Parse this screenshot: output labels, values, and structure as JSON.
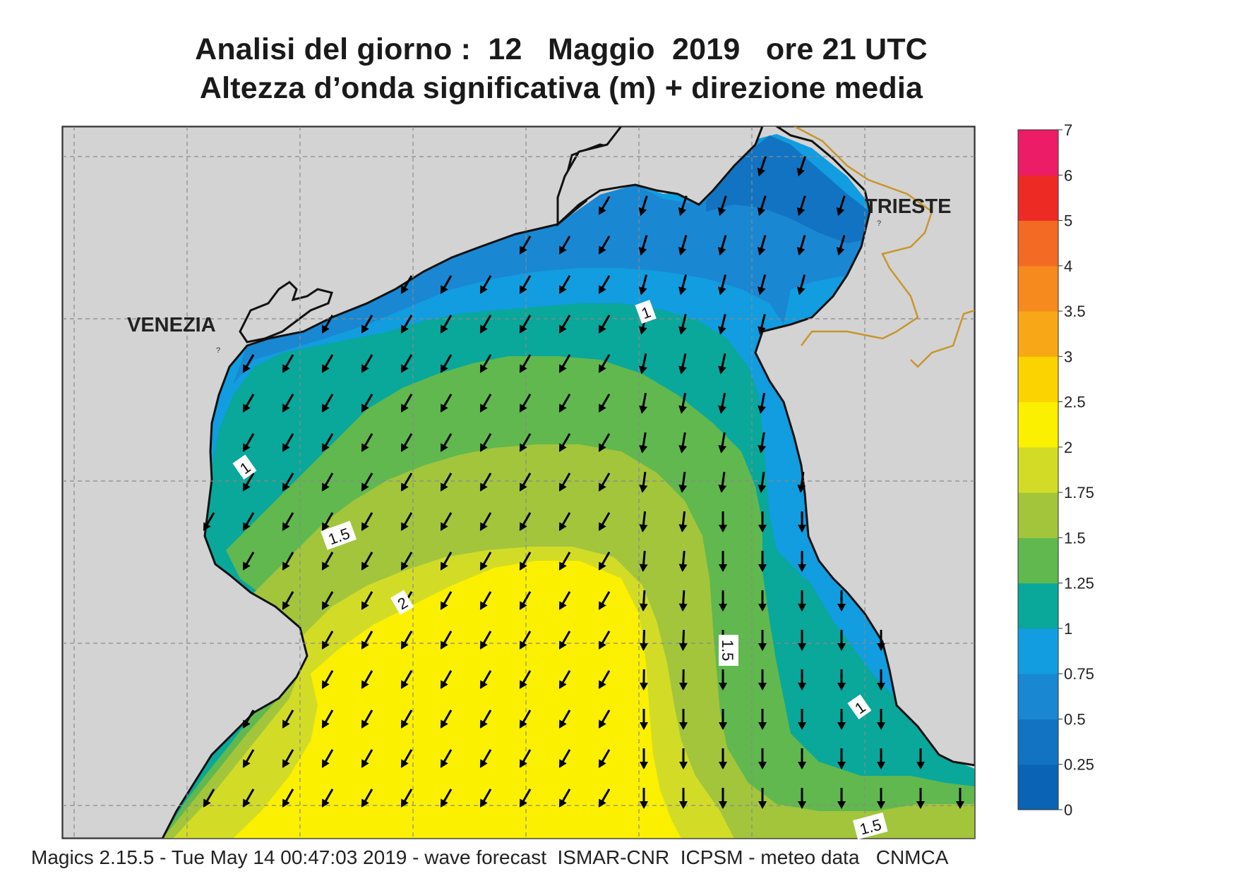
{
  "title": {
    "line1": "Analisi del giorno :  12   Maggio  2019   ore 21 UTC",
    "line2": "Altezza d’onda significativa (m) + direzione media"
  },
  "places": {
    "venezia": "VENEZIA",
    "trieste": "TRIESTE",
    "venezia_marker": "?",
    "trieste_marker": "?"
  },
  "contour_labels": {
    "c1_north": "1",
    "c1_west": "1",
    "c1_east": "1",
    "c15_west": "1.5",
    "c15_east": "1.5",
    "c15_south": "1.5",
    "c2": "2"
  },
  "legend": {
    "ticks": [
      "0",
      "0.25",
      "0.5",
      "0.75",
      "1",
      "1.25",
      "1.5",
      "1.75",
      "2",
      "2.5",
      "3",
      "3.5",
      "4",
      "5",
      "6",
      "7"
    ],
    "colors": [
      "#0a63b5",
      "#1273c2",
      "#1a87d3",
      "#119de0",
      "#0aa79b",
      "#61b84e",
      "#a2c53c",
      "#d2dc27",
      "#fbf000",
      "#fbd300",
      "#f8a817",
      "#f68a1f",
      "#f26a24",
      "#ee2a25",
      "#ec1c66"
    ]
  },
  "arrow_direction_deg": 210,
  "colors": {
    "land": "#d3d3d3",
    "coast": "#111111",
    "border": "#c8952e",
    "arrow": "#000000"
  },
  "footer": "Magics 2.15.5 - Tue May 14 00:47:03 2019 - wave forecast  ISMAR-CNR  ICPSM - meteo data   CNMCA"
}
